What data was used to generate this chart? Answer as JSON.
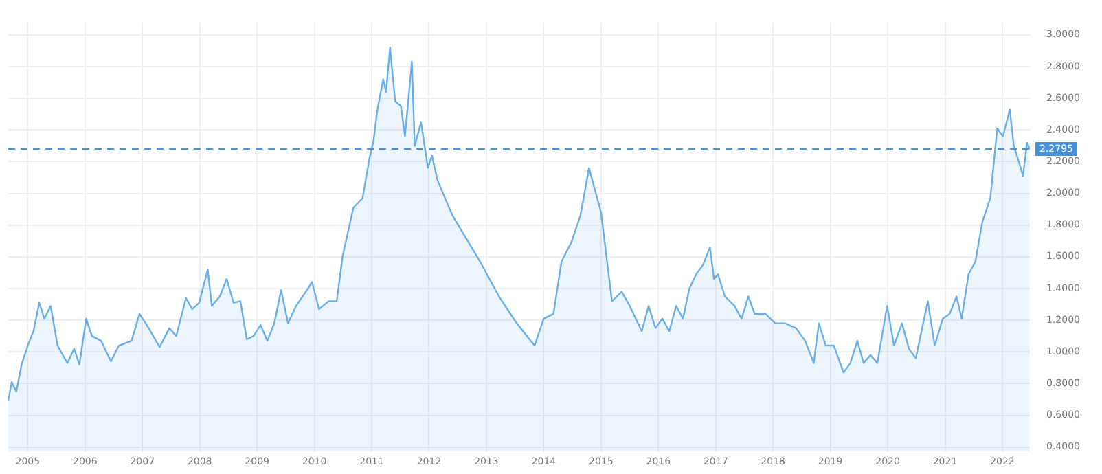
{
  "chart_data": {
    "type": "area",
    "x": [
      2004.66,
      2004.72,
      2004.8,
      2004.9,
      2005.02,
      2005.1,
      2005.2,
      2005.29,
      2005.4,
      2005.52,
      2005.69,
      2005.81,
      2005.9,
      2006.02,
      2006.12,
      2006.28,
      2006.45,
      2006.59,
      2006.81,
      2006.95,
      2007.11,
      2007.3,
      2007.47,
      2007.59,
      2007.76,
      2007.87,
      2007.99,
      2008.14,
      2008.21,
      2008.35,
      2008.47,
      2008.59,
      2008.71,
      2008.82,
      2008.94,
      2009.06,
      2009.18,
      2009.3,
      2009.42,
      2009.54,
      2009.68,
      2009.85,
      2009.96,
      2010.08,
      2010.25,
      2010.39,
      2010.49,
      2010.68,
      2010.84,
      2010.96,
      2011.03,
      2011.1,
      2011.2,
      2011.25,
      2011.32,
      2011.41,
      2011.51,
      2011.58,
      2011.7,
      2011.75,
      2011.86,
      2011.98,
      2012.05,
      2012.15,
      2012.41,
      2012.89,
      2013.22,
      2013.53,
      2013.84,
      2014.0,
      2014.17,
      2014.31,
      2014.48,
      2014.64,
      2014.79,
      2015.0,
      2015.19,
      2015.36,
      2015.5,
      2015.71,
      2015.83,
      2015.95,
      2016.07,
      2016.19,
      2016.31,
      2016.43,
      2016.54,
      2016.66,
      2016.78,
      2016.9,
      2016.97,
      2017.04,
      2017.16,
      2017.33,
      2017.45,
      2017.57,
      2017.68,
      2017.87,
      2018.04,
      2018.21,
      2018.4,
      2018.56,
      2018.71,
      2018.8,
      2018.92,
      2019.06,
      2019.23,
      2019.35,
      2019.47,
      2019.58,
      2019.7,
      2019.82,
      2019.99,
      2020.11,
      2020.25,
      2020.37,
      2020.49,
      2020.7,
      2020.82,
      2020.96,
      2021.08,
      2021.2,
      2021.29,
      2021.41,
      2021.53,
      2021.65,
      2021.79,
      2021.91,
      2022.01,
      2022.13,
      2022.2,
      2022.27,
      2022.36,
      2022.43,
      2022.48
    ],
    "series": [
      {
        "color": "#6aaee8",
        "values": [
          0.69,
          0.81,
          0.75,
          0.93,
          1.06,
          1.13,
          1.31,
          1.21,
          1.29,
          1.04,
          0.93,
          1.02,
          0.92,
          1.21,
          1.1,
          1.07,
          0.94,
          1.04,
          1.07,
          1.24,
          1.15,
          1.03,
          1.15,
          1.1,
          1.34,
          1.27,
          1.31,
          1.52,
          1.29,
          1.35,
          1.46,
          1.31,
          1.32,
          1.08,
          1.1,
          1.17,
          1.07,
          1.18,
          1.39,
          1.18,
          1.29,
          1.38,
          1.44,
          1.27,
          1.32,
          1.32,
          1.6,
          1.91,
          1.97,
          2.22,
          2.33,
          2.53,
          2.72,
          2.64,
          2.92,
          2.58,
          2.55,
          2.36,
          2.83,
          2.3,
          2.45,
          2.16,
          2.24,
          2.08,
          1.86,
          1.57,
          1.35,
          1.18,
          1.04,
          1.21,
          1.24,
          1.57,
          1.69,
          1.86,
          2.16,
          1.88,
          1.32,
          1.38,
          1.29,
          1.13,
          1.29,
          1.15,
          1.21,
          1.13,
          1.29,
          1.21,
          1.4,
          1.49,
          1.55,
          1.66,
          1.46,
          1.49,
          1.35,
          1.29,
          1.21,
          1.35,
          1.24,
          1.24,
          1.18,
          1.18,
          1.15,
          1.07,
          0.93,
          1.18,
          1.04,
          1.04,
          0.87,
          0.93,
          1.07,
          0.93,
          0.98,
          0.93,
          1.29,
          1.04,
          1.18,
          1.02,
          0.96,
          1.32,
          1.04,
          1.21,
          1.24,
          1.35,
          1.21,
          1.49,
          1.57,
          1.82,
          1.97,
          2.41,
          2.36,
          2.53,
          2.3,
          2.22,
          2.11,
          2.32,
          2.2795
        ]
      }
    ],
    "xlim": [
      2004.66,
      2022.48
    ],
    "ylim": [
      0.37,
      3.08
    ],
    "xticks": [
      2005,
      2006,
      2007,
      2008,
      2009,
      2010,
      2011,
      2012,
      2013,
      2014,
      2015,
      2016,
      2017,
      2018,
      2019,
      2020,
      2021,
      2022
    ],
    "yticks": [
      {
        "value": 0.4,
        "label": "0.4000"
      },
      {
        "value": 0.6,
        "label": "0.6000"
      },
      {
        "value": 0.8,
        "label": "0.8000"
      },
      {
        "value": 1.0,
        "label": "1.0000"
      },
      {
        "value": 1.2,
        "label": "1.2000"
      },
      {
        "value": 1.4,
        "label": "1.4000"
      },
      {
        "value": 1.6,
        "label": "1.6000"
      },
      {
        "value": 1.8,
        "label": "1.8000"
      },
      {
        "value": 2.0,
        "label": "2.0000"
      },
      {
        "value": 2.2,
        "label": "2.2000"
      },
      {
        "value": 2.4,
        "label": "2.4000"
      },
      {
        "value": 2.6,
        "label": "2.6000"
      },
      {
        "value": 2.8,
        "label": "2.8000"
      },
      {
        "value": 3.0,
        "label": "3.0000"
      }
    ],
    "ref_lines": [
      {
        "axis": "y",
        "value": 2.2795,
        "label": "2.2795",
        "color": "#4a90d9",
        "line_style": "dashed"
      }
    ],
    "grid": true,
    "legend": false,
    "marker": "none",
    "line_style": "solid"
  }
}
